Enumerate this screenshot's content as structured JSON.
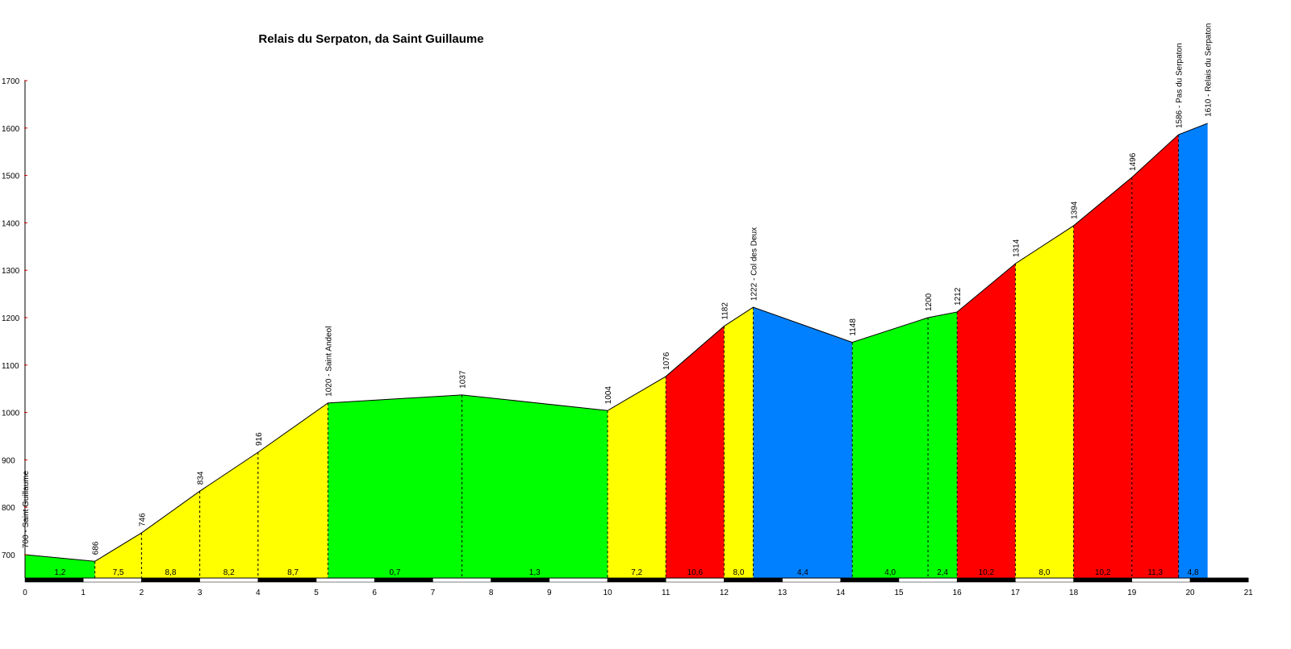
{
  "chart_data": {
    "type": "area",
    "title": "Relais du Serpaton, da Saint Guillaume",
    "xlabel": "",
    "ylabel": "",
    "xlim": [
      0,
      21
    ],
    "ylim": [
      650,
      1700
    ],
    "x_ticks": [
      "0",
      "1",
      "2",
      "3",
      "4",
      "5",
      "6",
      "7",
      "8",
      "9",
      "10",
      "11",
      "12",
      "13",
      "14",
      "15",
      "16",
      "17",
      "18",
      "19",
      "20",
      "21"
    ],
    "y_ticks": [
      "700",
      "800",
      "900",
      "1000",
      "1100",
      "1200",
      "1300",
      "1400",
      "1500",
      "1600",
      "1700"
    ],
    "grid": false,
    "points": [
      {
        "x": 0,
        "y": 700,
        "label": "700 - Saint Guillaume"
      },
      {
        "x": 1.2,
        "y": 686,
        "label": "686"
      },
      {
        "x": 2.0,
        "y": 746,
        "label": "746"
      },
      {
        "x": 3.0,
        "y": 834,
        "label": "834"
      },
      {
        "x": 4.0,
        "y": 916,
        "label": "916"
      },
      {
        "x": 5.2,
        "y": 1020,
        "label": "1020 - Saint Andeol"
      },
      {
        "x": 7.5,
        "y": 1037,
        "label": "1037"
      },
      {
        "x": 10.0,
        "y": 1004,
        "label": "1004"
      },
      {
        "x": 11.0,
        "y": 1076,
        "label": "1076"
      },
      {
        "x": 12.0,
        "y": 1182,
        "label": "1182"
      },
      {
        "x": 12.5,
        "y": 1222,
        "label": "1222 - Col des Deux"
      },
      {
        "x": 14.2,
        "y": 1148,
        "label": "1148"
      },
      {
        "x": 15.5,
        "y": 1200,
        "label": "1200"
      },
      {
        "x": 16.0,
        "y": 1212,
        "label": "1212"
      },
      {
        "x": 17.0,
        "y": 1314,
        "label": "1314"
      },
      {
        "x": 18.0,
        "y": 1394,
        "label": "1394"
      },
      {
        "x": 19.0,
        "y": 1496,
        "label": "1496"
      },
      {
        "x": 19.8,
        "y": 1586,
        "label": "1586 - Pas du Serpaton"
      },
      {
        "x": 20.3,
        "y": 1610,
        "label": "1610 - Relais du Serpaton"
      }
    ],
    "segments": [
      {
        "gradient": "1,2",
        "color": "#00ff00"
      },
      {
        "gradient": "7,5",
        "color": "#ffff00"
      },
      {
        "gradient": "8,8",
        "color": "#ffff00"
      },
      {
        "gradient": "8,2",
        "color": "#ffff00"
      },
      {
        "gradient": "8,7",
        "color": "#ffff00"
      },
      {
        "gradient": "0,7",
        "color": "#00ff00"
      },
      {
        "gradient": "1,3",
        "color": "#00ff00"
      },
      {
        "gradient": "7,2",
        "color": "#ffff00"
      },
      {
        "gradient": "10,6",
        "color": "#ff0000"
      },
      {
        "gradient": "8,0",
        "color": "#ffff00"
      },
      {
        "gradient": "4,4",
        "color": "#0080ff"
      },
      {
        "gradient": "4,0",
        "color": "#00ff00"
      },
      {
        "gradient": "2,4",
        "color": "#00ff00"
      },
      {
        "gradient": "10,2",
        "color": "#ff0000"
      },
      {
        "gradient": "8,0",
        "color": "#ffff00"
      },
      {
        "gradient": "10,2",
        "color": "#ff0000"
      },
      {
        "gradient": "11,3",
        "color": "#ff0000"
      },
      {
        "gradient": "4,8",
        "color": "#0080ff"
      }
    ],
    "colors": {
      "axis": "#000000",
      "tick_mark": "#cc0000",
      "baseline_dark": "#000000",
      "baseline_light": "#ffffff"
    }
  }
}
